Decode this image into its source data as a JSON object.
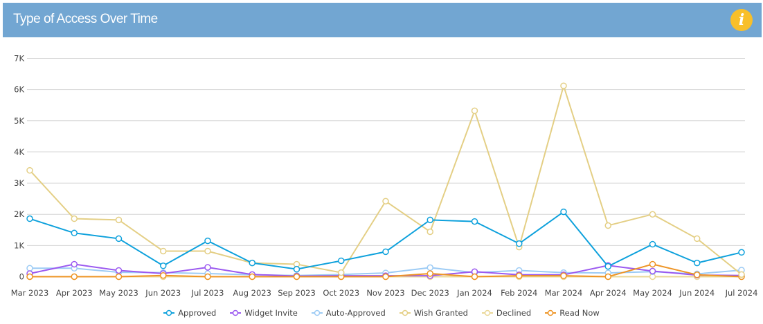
{
  "header": {
    "title": "Type of Access Over Time",
    "info_icon": "info-icon"
  },
  "chart_data": {
    "type": "line",
    "title": "",
    "xlabel": "",
    "ylabel": "",
    "ylim": [
      0,
      7000
    ],
    "yticks": [
      "0",
      "1K",
      "2K",
      "3K",
      "4K",
      "5K",
      "6K",
      "7K"
    ],
    "grid": true,
    "legend_position": "bottom",
    "categories": [
      "Mar 2023",
      "Apr 2023",
      "May 2023",
      "Jun 2023",
      "Jul 2023",
      "Aug 2023",
      "Sep 2023",
      "Oct 2023",
      "Nov 2023",
      "Dec 2023",
      "Jan 2024",
      "Feb 2024",
      "Mar 2024",
      "Apr 2024",
      "May 2024",
      "Jun 2024",
      "Jul 2024"
    ],
    "series": [
      {
        "name": "Approved",
        "color": "#0ea1dc",
        "values": [
          1860,
          1400,
          1220,
          350,
          1150,
          440,
          240,
          510,
          800,
          1820,
          1770,
          1060,
          2080,
          330,
          1040,
          440,
          780
        ]
      },
      {
        "name": "Widget Invite",
        "color": "#9b59f0",
        "values": [
          100,
          400,
          200,
          100,
          300,
          70,
          20,
          30,
          30,
          30,
          160,
          60,
          60,
          360,
          180,
          50,
          40
        ]
      },
      {
        "name": "Auto-Approved",
        "color": "#9ccbf5",
        "values": [
          270,
          270,
          140,
          130,
          100,
          60,
          40,
          70,
          120,
          290,
          130,
          200,
          130,
          120,
          160,
          90,
          210
        ]
      },
      {
        "name": "Wish Granted",
        "color": "#e4cf85",
        "values": [
          3410,
          1860,
          1820,
          820,
          820,
          440,
          400,
          130,
          2420,
          1440,
          5320,
          950,
          6120,
          1640,
          2000,
          1220,
          70
        ]
      },
      {
        "name": "Declined",
        "color": "#ead796",
        "values": [
          0,
          0,
          0,
          0,
          0,
          0,
          0,
          0,
          0,
          0,
          0,
          0,
          0,
          0,
          0,
          0,
          0
        ]
      },
      {
        "name": "Read Now",
        "color": "#ee9424",
        "values": [
          0,
          0,
          0,
          40,
          0,
          0,
          0,
          0,
          0,
          100,
          0,
          30,
          30,
          0,
          400,
          60,
          0
        ]
      }
    ]
  }
}
